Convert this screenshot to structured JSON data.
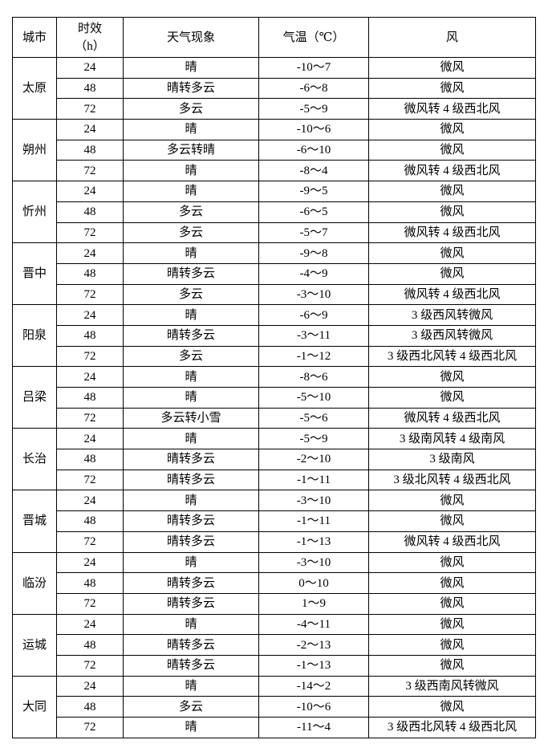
{
  "header": {
    "city": "城市",
    "period_line1": "时效",
    "period_line2": "（h）",
    "weather": "天气现象",
    "temp": "气温（℃）",
    "wind": "风"
  },
  "cities": [
    {
      "name": "太原",
      "rows": [
        [
          "24",
          "晴",
          "-10～7",
          "微风"
        ],
        [
          "48",
          "晴转多云",
          "-6～8",
          "微风"
        ],
        [
          "72",
          "多云",
          "-5～9",
          "微风转 4 级西北风"
        ]
      ]
    },
    {
      "name": "朔州",
      "rows": [
        [
          "24",
          "晴",
          "-10～6",
          "微风"
        ],
        [
          "48",
          "多云转晴",
          "-6～10",
          "微风"
        ],
        [
          "72",
          "晴",
          "-8～4",
          "微风转 4 级西北风"
        ]
      ]
    },
    {
      "name": "忻州",
      "rows": [
        [
          "24",
          "晴",
          "-9～5",
          "微风"
        ],
        [
          "48",
          "多云",
          "-6～5",
          "微风"
        ],
        [
          "72",
          "多云",
          "-5～7",
          "微风转 4 级西北风"
        ]
      ]
    },
    {
      "name": "晋中",
      "rows": [
        [
          "24",
          "晴",
          "-9～8",
          "微风"
        ],
        [
          "48",
          "晴转多云",
          "-4～9",
          "微风"
        ],
        [
          "72",
          "多云",
          "-3～10",
          "微风转 4 级西北风"
        ]
      ]
    },
    {
      "name": "阳泉",
      "rows": [
        [
          "24",
          "晴",
          "-6～9",
          "3 级西风转微风"
        ],
        [
          "48",
          "晴转多云",
          "-3～11",
          "3 级西风转微风"
        ],
        [
          "72",
          "多云",
          "-1～12",
          "3 级西北风转 4 级西北风"
        ]
      ]
    },
    {
      "name": "吕梁",
      "rows": [
        [
          "24",
          "晴",
          "-8～6",
          "微风"
        ],
        [
          "48",
          "晴",
          "-5～10",
          "微风"
        ],
        [
          "72",
          "多云转小雪",
          "-5～6",
          "微风转 4 级西北风"
        ]
      ]
    },
    {
      "name": "长治",
      "rows": [
        [
          "24",
          "晴",
          "-5～9",
          "3 级南风转 4 级南风"
        ],
        [
          "48",
          "晴转多云",
          "-2～10",
          "3 级南风"
        ],
        [
          "72",
          "晴转多云",
          "-1～11",
          "3 级北风转 4 级西北风"
        ]
      ]
    },
    {
      "name": "晋城",
      "rows": [
        [
          "24",
          "晴",
          "-3～10",
          "微风"
        ],
        [
          "48",
          "晴转多云",
          "-1～11",
          "微风"
        ],
        [
          "72",
          "晴转多云",
          "-1～13",
          "微风转 4 级西北风"
        ]
      ]
    },
    {
      "name": "临汾",
      "rows": [
        [
          "24",
          "晴",
          "-3～10",
          "微风"
        ],
        [
          "48",
          "晴转多云",
          "0～10",
          "微风"
        ],
        [
          "72",
          "晴转多云",
          "1～9",
          "微风"
        ]
      ]
    },
    {
      "name": "运城",
      "rows": [
        [
          "24",
          "晴",
          "-4～11",
          "微风"
        ],
        [
          "48",
          "晴转多云",
          "-2～13",
          "微风"
        ],
        [
          "72",
          "晴转多云",
          "-1～13",
          "微风"
        ]
      ]
    },
    {
      "name": "大同",
      "rows": [
        [
          "24",
          "晴",
          "-14～2",
          "3 级西南风转微风"
        ],
        [
          "48",
          "多云",
          "-10～6",
          "微风"
        ],
        [
          "72",
          "晴",
          "-11～4",
          "3 级西北风转 4 级西北风"
        ]
      ]
    }
  ]
}
